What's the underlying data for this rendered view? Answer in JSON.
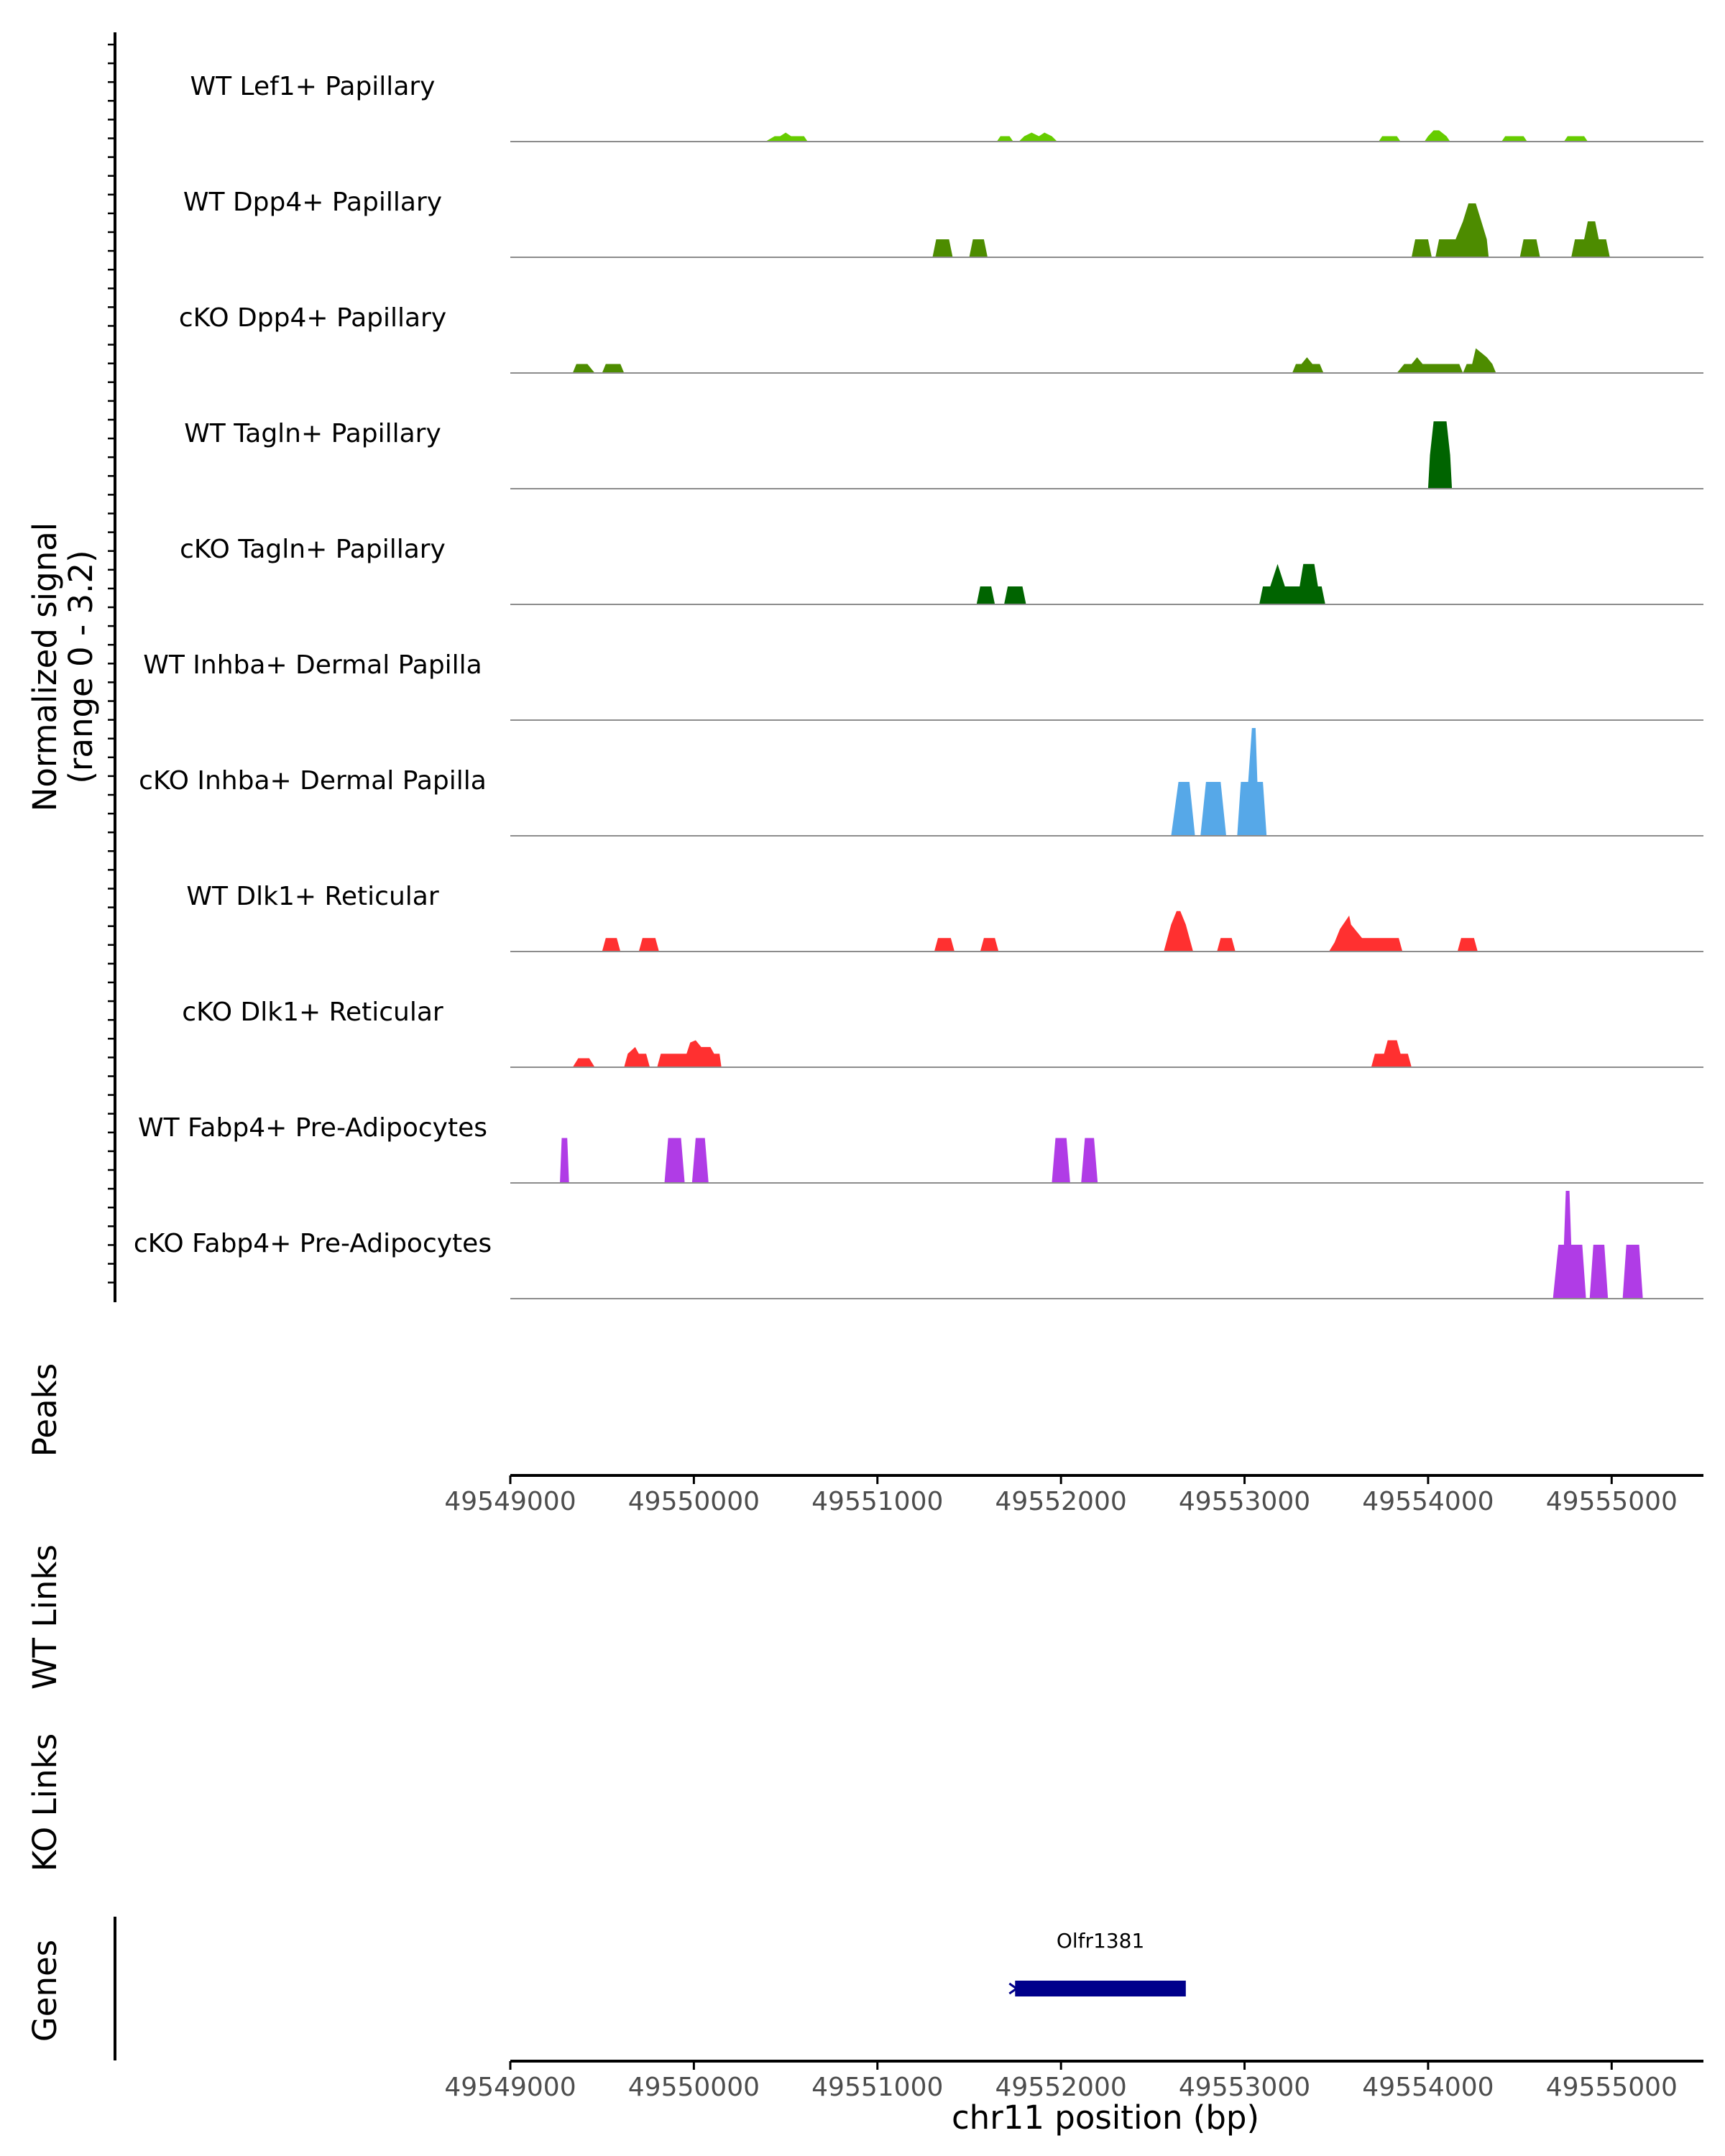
{
  "chart_data": {
    "type": "area",
    "chromosome": "chr11",
    "xrange": [
      49549000,
      49555500
    ],
    "signal_range": [
      0,
      3.2
    ],
    "ylabel_line1": "Normalized signal",
    "ylabel_line2": "(range 0 - 3.2)",
    "xlabel": "chr11 position (bp)",
    "x_ticks": [
      49549000,
      49550000,
      49551000,
      49552000,
      49553000,
      49554000,
      49555000
    ],
    "x_tick_labels": [
      "49549000",
      "49550000",
      "49551000",
      "49552000",
      "49553000",
      "49554000",
      "49555000"
    ],
    "panel_labels": {
      "peaks": "Peaks",
      "wt_links": "WT Links",
      "ko_links": "KO Links",
      "genes": "Genes"
    },
    "tracks": [
      {
        "name": "WT Lef1+ Papillary",
        "color": "#66cc00",
        "points": [
          [
            49550390,
            0
          ],
          [
            49550440,
            0.12
          ],
          [
            49550470,
            0.12
          ],
          [
            49550500,
            0.2
          ],
          [
            49550530,
            0.12
          ],
          [
            49550600,
            0.12
          ],
          [
            49550620,
            0
          ],
          [
            49551650,
            0
          ],
          [
            49551670,
            0.12
          ],
          [
            49551720,
            0.12
          ],
          [
            49551740,
            0
          ],
          [
            49551770,
            0
          ],
          [
            49551800,
            0.12
          ],
          [
            49551840,
            0.2
          ],
          [
            49551880,
            0.12
          ],
          [
            49551910,
            0.2
          ],
          [
            49551950,
            0.12
          ],
          [
            49551980,
            0
          ],
          [
            49553730,
            0
          ],
          [
            49553750,
            0.12
          ],
          [
            49553830,
            0.12
          ],
          [
            49553850,
            0
          ],
          [
            49553980,
            0
          ],
          [
            49554000,
            0.12
          ],
          [
            49554030,
            0.25
          ],
          [
            49554060,
            0.25
          ],
          [
            49554100,
            0.12
          ],
          [
            49554120,
            0
          ],
          [
            49554400,
            0
          ],
          [
            49554420,
            0.12
          ],
          [
            49554520,
            0.12
          ],
          [
            49554540,
            0
          ],
          [
            49554740,
            0
          ],
          [
            49554760,
            0.12
          ],
          [
            49554850,
            0.12
          ],
          [
            49554870,
            0
          ]
        ]
      },
      {
        "name": "WT Dpp4+ Papillary",
        "color": "#4d8c00",
        "points": [
          [
            49551300,
            0
          ],
          [
            49551320,
            0.4
          ],
          [
            49551390,
            0.4
          ],
          [
            49551410,
            0
          ],
          [
            49551500,
            0
          ],
          [
            49551520,
            0.4
          ],
          [
            49551580,
            0.4
          ],
          [
            49551600,
            0
          ],
          [
            49553910,
            0
          ],
          [
            49553930,
            0.4
          ],
          [
            49554000,
            0.4
          ],
          [
            49554020,
            0
          ],
          [
            49554040,
            0
          ],
          [
            49554060,
            0.4
          ],
          [
            49554150,
            0.4
          ],
          [
            49554190,
            0.8
          ],
          [
            49554220,
            1.2
          ],
          [
            49554260,
            1.2
          ],
          [
            49554290,
            0.8
          ],
          [
            49554320,
            0.4
          ],
          [
            49554330,
            0
          ],
          [
            49554500,
            0
          ],
          [
            49554520,
            0.4
          ],
          [
            49554590,
            0.4
          ],
          [
            49554610,
            0
          ],
          [
            49554780,
            0
          ],
          [
            49554800,
            0.4
          ],
          [
            49554850,
            0.4
          ],
          [
            49554870,
            0.8
          ],
          [
            49554910,
            0.8
          ],
          [
            49554930,
            0.4
          ],
          [
            49554970,
            0.4
          ],
          [
            49554990,
            0
          ]
        ]
      },
      {
        "name": "cKO Dpp4+ Papillary",
        "color": "#4d8c00",
        "points": [
          [
            49549340,
            0
          ],
          [
            49549360,
            0.2
          ],
          [
            49549420,
            0.2
          ],
          [
            49549460,
            0
          ],
          [
            49549500,
            0
          ],
          [
            49549520,
            0.2
          ],
          [
            49549600,
            0.2
          ],
          [
            49549620,
            0
          ],
          [
            49553260,
            0
          ],
          [
            49553280,
            0.2
          ],
          [
            49553310,
            0.2
          ],
          [
            49553340,
            0.35
          ],
          [
            49553370,
            0.2
          ],
          [
            49553410,
            0.2
          ],
          [
            49553430,
            0
          ],
          [
            49553830,
            0
          ],
          [
            49553870,
            0.2
          ],
          [
            49553910,
            0.2
          ],
          [
            49553940,
            0.35
          ],
          [
            49553970,
            0.2
          ],
          [
            49554170,
            0.2
          ],
          [
            49554190,
            0
          ],
          [
            49554210,
            0.2
          ],
          [
            49554240,
            0.2
          ],
          [
            49554260,
            0.55
          ],
          [
            49554290,
            0.45
          ],
          [
            49554320,
            0.35
          ],
          [
            49554350,
            0.2
          ],
          [
            49554370,
            0
          ]
        ]
      },
      {
        "name": "WT Tagln+ Papillary",
        "color": "#006400",
        "points": [
          [
            49554000,
            0
          ],
          [
            49554010,
            0.75
          ],
          [
            49554030,
            1.5
          ],
          [
            49554100,
            1.5
          ],
          [
            49554120,
            0.75
          ],
          [
            49554130,
            0
          ]
        ]
      },
      {
        "name": "cKO Tagln+ Papillary",
        "color": "#006400",
        "points": [
          [
            49551540,
            0
          ],
          [
            49551560,
            0.4
          ],
          [
            49551620,
            0.4
          ],
          [
            49551640,
            0
          ],
          [
            49551690,
            0
          ],
          [
            49551710,
            0.4
          ],
          [
            49551790,
            0.4
          ],
          [
            49551810,
            0
          ],
          [
            49553080,
            0
          ],
          [
            49553100,
            0.4
          ],
          [
            49553140,
            0.4
          ],
          [
            49553180,
            0.9
          ],
          [
            49553220,
            0.4
          ],
          [
            49553300,
            0.4
          ],
          [
            49553320,
            0.9
          ],
          [
            49553380,
            0.9
          ],
          [
            49553400,
            0.4
          ],
          [
            49553420,
            0.4
          ],
          [
            49553440,
            0
          ]
        ]
      },
      {
        "name": "WT Inhba+ Dermal Papilla",
        "color": "#56a8e8",
        "points": []
      },
      {
        "name": "cKO Inhba+ Dermal Papilla",
        "color": "#56a8e8",
        "points": [
          [
            49552600,
            0
          ],
          [
            49552640,
            1.2
          ],
          [
            49552700,
            1.2
          ],
          [
            49552730,
            0
          ],
          [
            49552760,
            0
          ],
          [
            49552790,
            1.2
          ],
          [
            49552870,
            1.2
          ],
          [
            49552900,
            0
          ],
          [
            49552960,
            0
          ],
          [
            49552980,
            1.2
          ],
          [
            49553020,
            1.2
          ],
          [
            49553040,
            2.4
          ],
          [
            49553060,
            2.4
          ],
          [
            49553070,
            1.2
          ],
          [
            49553100,
            1.2
          ],
          [
            49553120,
            0
          ]
        ]
      },
      {
        "name": "WT Dlk1+ Reticular",
        "color": "#ff3030",
        "points": [
          [
            49549500,
            0
          ],
          [
            49549520,
            0.3
          ],
          [
            49549580,
            0.3
          ],
          [
            49549600,
            0
          ],
          [
            49549700,
            0
          ],
          [
            49549720,
            0.3
          ],
          [
            49549790,
            0.3
          ],
          [
            49549810,
            0
          ],
          [
            49551310,
            0
          ],
          [
            49551330,
            0.3
          ],
          [
            49551400,
            0.3
          ],
          [
            49551420,
            0
          ],
          [
            49551560,
            0
          ],
          [
            49551580,
            0.3
          ],
          [
            49551640,
            0.3
          ],
          [
            49551660,
            0
          ],
          [
            49552560,
            0
          ],
          [
            49552580,
            0.3
          ],
          [
            49552600,
            0.6
          ],
          [
            49552630,
            0.9
          ],
          [
            49552650,
            0.9
          ],
          [
            49552680,
            0.6
          ],
          [
            49552700,
            0.3
          ],
          [
            49552720,
            0
          ],
          [
            49552850,
            0
          ],
          [
            49552870,
            0.3
          ],
          [
            49552930,
            0.3
          ],
          [
            49552950,
            0
          ],
          [
            49553460,
            0
          ],
          [
            49553490,
            0.2
          ],
          [
            49553520,
            0.5
          ],
          [
            49553570,
            0.8
          ],
          [
            49553580,
            0.6
          ],
          [
            49553640,
            0.3
          ],
          [
            49553840,
            0.3
          ],
          [
            49553860,
            0
          ],
          [
            49554160,
            0
          ],
          [
            49554180,
            0.3
          ],
          [
            49554250,
            0.3
          ],
          [
            49554270,
            0
          ]
        ]
      },
      {
        "name": "cKO Dlk1+ Reticular",
        "color": "#ff3030",
        "points": [
          [
            49549340,
            0
          ],
          [
            49549370,
            0.2
          ],
          [
            49549430,
            0.2
          ],
          [
            49549460,
            0
          ],
          [
            49549620,
            0
          ],
          [
            49549640,
            0.3
          ],
          [
            49549680,
            0.45
          ],
          [
            49549700,
            0.3
          ],
          [
            49549740,
            0.3
          ],
          [
            49549760,
            0
          ],
          [
            49549800,
            0
          ],
          [
            49549820,
            0.3
          ],
          [
            49549960,
            0.3
          ],
          [
            49549980,
            0.55
          ],
          [
            49550010,
            0.6
          ],
          [
            49550040,
            0.45
          ],
          [
            49550090,
            0.45
          ],
          [
            49550110,
            0.3
          ],
          [
            49550140,
            0.3
          ],
          [
            49550150,
            0
          ],
          [
            49553690,
            0
          ],
          [
            49553710,
            0.3
          ],
          [
            49553760,
            0.3
          ],
          [
            49553780,
            0.6
          ],
          [
            49553830,
            0.6
          ],
          [
            49553850,
            0.3
          ],
          [
            49553890,
            0.3
          ],
          [
            49553910,
            0
          ]
        ]
      },
      {
        "name": "WT Fabp4+ Pre-Adipocytes",
        "color": "#b03ce6",
        "points": [
          [
            49549270,
            0
          ],
          [
            49549280,
            1.0
          ],
          [
            49549310,
            1.0
          ],
          [
            49549320,
            0
          ],
          [
            49549840,
            0
          ],
          [
            49549860,
            1.0
          ],
          [
            49549930,
            1.0
          ],
          [
            49549950,
            0
          ],
          [
            49549990,
            0
          ],
          [
            49550010,
            1.0
          ],
          [
            49550060,
            1.0
          ],
          [
            49550080,
            0
          ],
          [
            49551950,
            0
          ],
          [
            49551970,
            1.0
          ],
          [
            49552030,
            1.0
          ],
          [
            49552050,
            0
          ],
          [
            49552110,
            0
          ],
          [
            49552130,
            1.0
          ],
          [
            49552180,
            1.0
          ],
          [
            49552200,
            0
          ]
        ]
      },
      {
        "name": "cKO Fabp4+ Pre-Adipocytes",
        "color": "#b03ce6",
        "points": [
          [
            49554680,
            0
          ],
          [
            49554710,
            1.2
          ],
          [
            49554740,
            1.2
          ],
          [
            49554750,
            2.4
          ],
          [
            49554770,
            2.4
          ],
          [
            49554780,
            1.2
          ],
          [
            49554840,
            1.2
          ],
          [
            49554860,
            0
          ],
          [
            49554880,
            0
          ],
          [
            49554900,
            1.2
          ],
          [
            49554960,
            1.2
          ],
          [
            49554980,
            0
          ],
          [
            49555060,
            0
          ],
          [
            49555080,
            1.2
          ],
          [
            49555150,
            1.2
          ],
          [
            49555170,
            0
          ]
        ]
      }
    ],
    "genes": [
      {
        "name": "Olfr1381",
        "start": 49551750,
        "end": 49552680,
        "color": "#00008b"
      }
    ]
  }
}
